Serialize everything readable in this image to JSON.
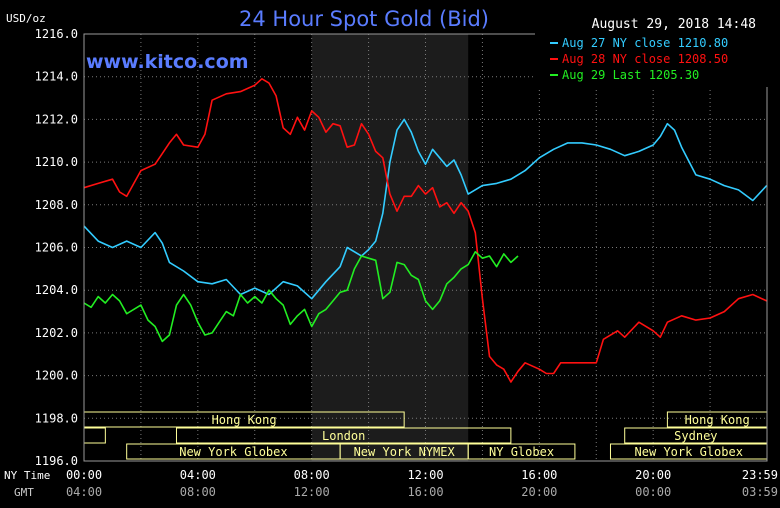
{
  "header": {
    "unit": "USD/oz",
    "title": "24 Hour Spot Gold (Bid)",
    "timestamp": "August 29, 2018 14:48",
    "watermark": "www.kitco.com"
  },
  "colors": {
    "background": "#000000",
    "grid": "#7a7a7a",
    "title": "#5a7cff",
    "aug27": "#33ccff",
    "aug28": "#ff1111",
    "aug29": "#22ee22",
    "session_band": "#ffff99",
    "nymex_shade": "#1c1c1c"
  },
  "legend": {
    "items": [
      {
        "label": "Aug 27 NY close 1210.80",
        "color_key": "aug27"
      },
      {
        "label": "Aug 28 NY close 1208.50",
        "color_key": "aug28"
      },
      {
        "label": "Aug 29 Last 1205.30",
        "color_key": "aug29"
      }
    ]
  },
  "x_axis": {
    "ny_time_label": "NY Time",
    "gmt_label": "GMT",
    "ny_ticks": [
      "00:00",
      "04:00",
      "08:00",
      "12:00",
      "16:00",
      "20:00",
      "23:59"
    ],
    "gmt_ticks": [
      "04:00",
      "08:00",
      "12:00",
      "16:00",
      "20:00",
      "00:00",
      "03:59"
    ]
  },
  "sessions": [
    {
      "name": "Hong Kong",
      "row": 0,
      "start": 0,
      "end": 11.25
    },
    {
      "name": "Hong Kong",
      "row": 0,
      "start": 20.5,
      "end": 24
    },
    {
      "name": "London",
      "row": 1,
      "start": 0,
      "end": 0.75
    },
    {
      "name": "London",
      "row": 1,
      "start": 3.25,
      "end": 15.0
    },
    {
      "name": "Sydney",
      "row": 1,
      "start": 19.0,
      "end": 24
    },
    {
      "name": "New York Globex",
      "row": 2,
      "start": 1.5,
      "end": 9.0
    },
    {
      "name": "New York NYMEX",
      "row": 2,
      "start": 9.0,
      "end": 13.5
    },
    {
      "name": "NY Globex",
      "row": 2,
      "start": 13.5,
      "end": 17.25
    },
    {
      "name": "New York Globex",
      "row": 2,
      "start": 18.5,
      "end": 24
    }
  ],
  "chart_data": {
    "type": "line",
    "title": "24 Hour Spot Gold (Bid)",
    "ylabel": "USD/oz",
    "ylim": [
      1196.0,
      1216.0
    ],
    "xlim": [
      0,
      24
    ],
    "yticks": [
      1196.0,
      1198.0,
      1200.0,
      1202.0,
      1204.0,
      1206.0,
      1208.0,
      1210.0,
      1212.0,
      1214.0,
      1216.0
    ],
    "nymex_shade": [
      8.0,
      13.5
    ],
    "series": [
      {
        "name": "Aug 27 NY close 1210.80",
        "color_key": "aug27",
        "points": [
          [
            0,
            1207.0
          ],
          [
            0.5,
            1206.3
          ],
          [
            1.0,
            1206.0
          ],
          [
            1.5,
            1206.3
          ],
          [
            2.0,
            1206.0
          ],
          [
            2.5,
            1206.7
          ],
          [
            2.75,
            1206.2
          ],
          [
            3.0,
            1205.3
          ],
          [
            3.5,
            1204.9
          ],
          [
            4.0,
            1204.4
          ],
          [
            4.5,
            1204.3
          ],
          [
            5.0,
            1204.5
          ],
          [
            5.5,
            1203.8
          ],
          [
            6.0,
            1204.1
          ],
          [
            6.5,
            1203.8
          ],
          [
            7.0,
            1204.4
          ],
          [
            7.5,
            1204.2
          ],
          [
            8.0,
            1203.6
          ],
          [
            8.5,
            1204.4
          ],
          [
            9.0,
            1205.1
          ],
          [
            9.25,
            1206.0
          ],
          [
            9.75,
            1205.6
          ],
          [
            10.0,
            1205.9
          ],
          [
            10.25,
            1206.3
          ],
          [
            10.5,
            1207.6
          ],
          [
            10.75,
            1210.0
          ],
          [
            11.0,
            1211.5
          ],
          [
            11.25,
            1212.0
          ],
          [
            11.5,
            1211.4
          ],
          [
            11.75,
            1210.5
          ],
          [
            12.0,
            1209.9
          ],
          [
            12.25,
            1210.6
          ],
          [
            12.5,
            1210.2
          ],
          [
            12.75,
            1209.8
          ],
          [
            13.0,
            1210.1
          ],
          [
            13.25,
            1209.4
          ],
          [
            13.5,
            1208.5
          ],
          [
            14.0,
            1208.9
          ],
          [
            14.5,
            1209.0
          ],
          [
            15.0,
            1209.2
          ],
          [
            15.5,
            1209.6
          ],
          [
            16.0,
            1210.2
          ],
          [
            16.5,
            1210.6
          ],
          [
            17.0,
            1210.9
          ],
          [
            17.5,
            1210.9
          ],
          [
            18.0,
            1210.8
          ],
          [
            18.5,
            1210.6
          ],
          [
            19.0,
            1210.3
          ],
          [
            19.5,
            1210.5
          ],
          [
            20.0,
            1210.8
          ],
          [
            20.25,
            1211.2
          ],
          [
            20.5,
            1211.8
          ],
          [
            20.75,
            1211.5
          ],
          [
            21.0,
            1210.7
          ],
          [
            21.5,
            1209.4
          ],
          [
            22.0,
            1209.2
          ],
          [
            22.5,
            1208.9
          ],
          [
            23.0,
            1208.7
          ],
          [
            23.5,
            1208.2
          ],
          [
            23.99,
            1208.9
          ]
        ]
      },
      {
        "name": "Aug 28 NY close 1208.50",
        "color_key": "aug28",
        "points": [
          [
            0,
            1208.8
          ],
          [
            0.5,
            1209.0
          ],
          [
            1.0,
            1209.2
          ],
          [
            1.25,
            1208.6
          ],
          [
            1.5,
            1208.4
          ],
          [
            2.0,
            1209.6
          ],
          [
            2.5,
            1209.9
          ],
          [
            2.75,
            1210.4
          ],
          [
            3.0,
            1210.9
          ],
          [
            3.25,
            1211.3
          ],
          [
            3.5,
            1210.8
          ],
          [
            4.0,
            1210.7
          ],
          [
            4.25,
            1211.3
          ],
          [
            4.5,
            1212.9
          ],
          [
            5.0,
            1213.2
          ],
          [
            5.5,
            1213.3
          ],
          [
            6.0,
            1213.6
          ],
          [
            6.25,
            1213.9
          ],
          [
            6.5,
            1213.7
          ],
          [
            6.75,
            1213.1
          ],
          [
            7.0,
            1211.6
          ],
          [
            7.25,
            1211.3
          ],
          [
            7.5,
            1212.1
          ],
          [
            7.75,
            1211.5
          ],
          [
            8.0,
            1212.4
          ],
          [
            8.25,
            1212.1
          ],
          [
            8.5,
            1211.4
          ],
          [
            8.75,
            1211.8
          ],
          [
            9.0,
            1211.7
          ],
          [
            9.25,
            1210.7
          ],
          [
            9.5,
            1210.8
          ],
          [
            9.75,
            1211.8
          ],
          [
            10.0,
            1211.3
          ],
          [
            10.25,
            1210.5
          ],
          [
            10.5,
            1210.2
          ],
          [
            10.75,
            1208.5
          ],
          [
            11.0,
            1207.7
          ],
          [
            11.25,
            1208.4
          ],
          [
            11.5,
            1208.4
          ],
          [
            11.75,
            1208.9
          ],
          [
            12.0,
            1208.5
          ],
          [
            12.25,
            1208.8
          ],
          [
            12.5,
            1207.9
          ],
          [
            12.75,
            1208.1
          ],
          [
            13.0,
            1207.6
          ],
          [
            13.25,
            1208.1
          ],
          [
            13.5,
            1207.7
          ],
          [
            13.75,
            1206.7
          ],
          [
            14.0,
            1203.6
          ],
          [
            14.25,
            1200.9
          ],
          [
            14.5,
            1200.5
          ],
          [
            14.75,
            1200.3
          ],
          [
            15.0,
            1199.7
          ],
          [
            15.25,
            1200.2
          ],
          [
            15.5,
            1200.6
          ],
          [
            16.0,
            1200.3
          ],
          [
            16.25,
            1200.1
          ],
          [
            16.5,
            1200.1
          ],
          [
            16.75,
            1200.6
          ],
          [
            17.0,
            1200.6
          ],
          [
            17.5,
            1200.6
          ],
          [
            18.0,
            1200.6
          ],
          [
            18.25,
            1201.7
          ],
          [
            18.75,
            1202.1
          ],
          [
            19.0,
            1201.8
          ],
          [
            19.5,
            1202.5
          ],
          [
            20.0,
            1202.1
          ],
          [
            20.25,
            1201.8
          ],
          [
            20.5,
            1202.5
          ],
          [
            21.0,
            1202.8
          ],
          [
            21.5,
            1202.6
          ],
          [
            22.0,
            1202.7
          ],
          [
            22.5,
            1203.0
          ],
          [
            23.0,
            1203.6
          ],
          [
            23.5,
            1203.8
          ],
          [
            23.99,
            1203.5
          ]
        ]
      },
      {
        "name": "Aug 29 Last 1205.30",
        "color_key": "aug29",
        "points": [
          [
            0,
            1203.4
          ],
          [
            0.25,
            1203.2
          ],
          [
            0.5,
            1203.7
          ],
          [
            0.75,
            1203.4
          ],
          [
            1.0,
            1203.8
          ],
          [
            1.25,
            1203.5
          ],
          [
            1.5,
            1202.9
          ],
          [
            2.0,
            1203.3
          ],
          [
            2.25,
            1202.6
          ],
          [
            2.5,
            1202.3
          ],
          [
            2.75,
            1201.6
          ],
          [
            3.0,
            1201.9
          ],
          [
            3.25,
            1203.3
          ],
          [
            3.5,
            1203.8
          ],
          [
            3.75,
            1203.3
          ],
          [
            4.0,
            1202.5
          ],
          [
            4.25,
            1201.9
          ],
          [
            4.5,
            1202.0
          ],
          [
            4.75,
            1202.5
          ],
          [
            5.0,
            1203.0
          ],
          [
            5.25,
            1202.8
          ],
          [
            5.5,
            1203.8
          ],
          [
            5.75,
            1203.4
          ],
          [
            6.0,
            1203.7
          ],
          [
            6.25,
            1203.4
          ],
          [
            6.5,
            1204.0
          ],
          [
            6.75,
            1203.6
          ],
          [
            7.0,
            1203.3
          ],
          [
            7.25,
            1202.4
          ],
          [
            7.5,
            1202.8
          ],
          [
            7.75,
            1203.1
          ],
          [
            8.0,
            1202.3
          ],
          [
            8.25,
            1202.9
          ],
          [
            8.5,
            1203.1
          ],
          [
            8.75,
            1203.5
          ],
          [
            9.0,
            1203.9
          ],
          [
            9.25,
            1204.0
          ],
          [
            9.5,
            1205.0
          ],
          [
            9.75,
            1205.6
          ],
          [
            10.0,
            1205.5
          ],
          [
            10.25,
            1205.4
          ],
          [
            10.5,
            1203.6
          ],
          [
            10.75,
            1203.9
          ],
          [
            11.0,
            1205.3
          ],
          [
            11.25,
            1205.2
          ],
          [
            11.5,
            1204.7
          ],
          [
            11.75,
            1204.5
          ],
          [
            12.0,
            1203.5
          ],
          [
            12.25,
            1203.1
          ],
          [
            12.5,
            1203.5
          ],
          [
            12.75,
            1204.3
          ],
          [
            13.0,
            1204.6
          ],
          [
            13.25,
            1205.0
          ],
          [
            13.5,
            1205.2
          ],
          [
            13.75,
            1205.8
          ],
          [
            14.0,
            1205.5
          ],
          [
            14.25,
            1205.6
          ],
          [
            14.5,
            1205.1
          ],
          [
            14.75,
            1205.7
          ],
          [
            15.0,
            1205.3
          ],
          [
            15.25,
            1205.6
          ]
        ]
      }
    ]
  }
}
